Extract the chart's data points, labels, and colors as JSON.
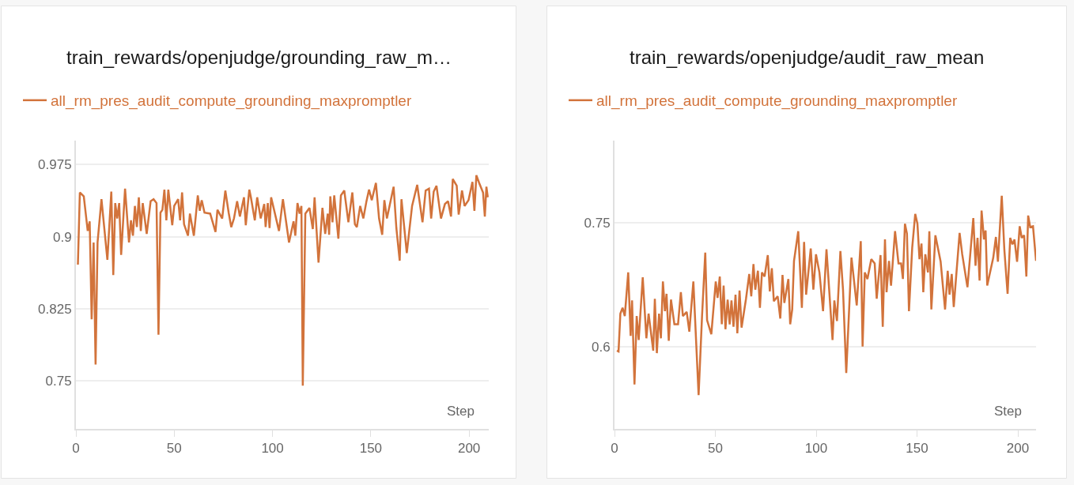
{
  "chart_data": [
    {
      "type": "line",
      "title": "train_rewards/openjudge/grounding_raw_m…",
      "xlabel": "Step",
      "grid": "y",
      "legend": "top left",
      "xlim": [
        0,
        210
      ],
      "ylim": [
        0.7,
        1.0
      ],
      "xticks": [
        0,
        50,
        100,
        150,
        200
      ],
      "yticks": [
        0.975,
        0.9,
        0.825,
        0.75
      ],
      "x": [
        1,
        2,
        4,
        6,
        7,
        8,
        9,
        10,
        11,
        13,
        16,
        18,
        19,
        20,
        21,
        22,
        23,
        25,
        27,
        28,
        29,
        30,
        31,
        32,
        33,
        34,
        36,
        38,
        39.5,
        41,
        42,
        43,
        44,
        45,
        46,
        47,
        49,
        50,
        52,
        53,
        54,
        55,
        57,
        58,
        60,
        62,
        63,
        64,
        65.4,
        68.3,
        71,
        72,
        74.4,
        76,
        77.7,
        79,
        80.4,
        82,
        83.4,
        85.5,
        86.4,
        88.2,
        89,
        91,
        92.2,
        94,
        95.8,
        96.5,
        97.6,
        98.5,
        99.3,
        103.3,
        105.3,
        108.4,
        110.7,
        111.6,
        112.7,
        113.8,
        114.7,
        115.4,
        116.7,
        118.8,
        120.5,
        121.4,
        123.4,
        125.4,
        126.8,
        128.1,
        128.8,
        129.4,
        130.5,
        131.4,
        133.5,
        134.8,
        136.5,
        138.6,
        140.6,
        141.9,
        142.9,
        144.6,
        146.2,
        147.8,
        149.1,
        150.5,
        152.6,
        154.2,
        155.8,
        156.9,
        158.2,
        161.6,
        163,
        164.7,
        165.6,
        168.3,
        171,
        173.6,
        176.3,
        177.9,
        179.6,
        180.7,
        182,
        183.4,
        185.7,
        187.7,
        189.3,
        190.8,
        191.7,
        193.7,
        194.7,
        196.4,
        197.7,
        199.7,
        201.7,
        202.7,
        203.7,
        205.1,
        207.1,
        208,
        208.8,
        209.5
      ],
      "series": [
        {
          "name": "all_rm_pres_audit_compute_grounding_maxpromptler",
          "color": "#d2733b",
          "values": [
            0.871,
            0.946,
            0.942,
            0.906,
            0.916,
            0.814,
            0.894,
            0.767,
            0.894,
            0.939,
            0.876,
            0.947,
            0.86,
            0.935,
            0.919,
            0.935,
            0.881,
            0.95,
            0.894,
            0.917,
            0.901,
            0.932,
            0.91,
            0.941,
            0.906,
            0.935,
            0.903,
            0.937,
            0.939,
            0.935,
            0.798,
            0.925,
            0.928,
            0.949,
            0.917,
            0.949,
            0.912,
            0.932,
            0.939,
            0.917,
            0.946,
            0.913,
            0.901,
            0.924,
            0.901,
            0.943,
            0.927,
            0.938,
            0.925,
            0.924,
            0.905,
            0.928,
            0.919,
            0.948,
            0.925,
            0.91,
            0.919,
            0.937,
            0.921,
            0.941,
            0.912,
            0.949,
            0.941,
            0.917,
            0.941,
            0.919,
            0.934,
            0.91,
            0.935,
            0.909,
            0.941,
            0.906,
            0.939,
            0.894,
            0.916,
            0.901,
            0.935,
            0.924,
            0.932,
            0.745,
            0.924,
            0.93,
            0.908,
            0.941,
            0.873,
            0.93,
            0.903,
            0.924,
            0.902,
            0.942,
            0.915,
            0.943,
            0.898,
            0.943,
            0.948,
            0.915,
            0.946,
            0.913,
            0.91,
            0.932,
            0.919,
            0.937,
            0.949,
            0.938,
            0.956,
            0.919,
            0.902,
            0.938,
            0.919,
            0.952,
            0.909,
            0.875,
            0.939,
            0.883,
            0.932,
            0.954,
            0.915,
            0.948,
            0.95,
            0.919,
            0.947,
            0.953,
            0.919,
            0.934,
            0.937,
            0.921,
            0.96,
            0.953,
            0.923,
            0.948,
            0.932,
            0.938,
            0.957,
            0.927,
            0.964,
            0.956,
            0.946,
            0.921,
            0.952,
            0.941
          ]
        }
      ]
    },
    {
      "type": "line",
      "title": "train_rewards/openjudge/audit_raw_mean",
      "xlabel": "Step",
      "grid": "y",
      "legend": "top left",
      "xlim": [
        0,
        209
      ],
      "ylim": [
        0.5,
        0.85
      ],
      "xticks": [
        0,
        50,
        100,
        150,
        200
      ],
      "yticks": [
        0.75,
        0.6
      ],
      "x": [
        1.2,
        2,
        2.9,
        4,
        5.1,
        6.8,
        8,
        8.7,
        9.9,
        11,
        12,
        14,
        15.8,
        16.9,
        19.2,
        20,
        21,
        22.1,
        23,
        24,
        25,
        25.8,
        26.9,
        28,
        29.7,
        31.5,
        32.9,
        33.9,
        35.8,
        37.1,
        39.1,
        41.7,
        43.4,
        45,
        45.9,
        48,
        50.2,
        51.1,
        52.2,
        53.2,
        54.1,
        55,
        56.1,
        57.1,
        58,
        59,
        60,
        60.9,
        62,
        63,
        65.2,
        66.8,
        67.8,
        68.9,
        69.8,
        71.1,
        72.1,
        73.1,
        74.4,
        76,
        77,
        78,
        79,
        80.9,
        82.2,
        83.3,
        84.2,
        86.2,
        87.1,
        88.1,
        89,
        91.1,
        92.9,
        94,
        95,
        97.3,
        98.6,
        99.9,
        101.6,
        103.4,
        105.1,
        108.1,
        109,
        110.3,
        112,
        113.3,
        114.9,
        117.5,
        120.1,
        122.1,
        123,
        124.1,
        125.4,
        127.3,
        129,
        130,
        131.9,
        133,
        134.1,
        134.9,
        136.1,
        137.1,
        139.1,
        140.8,
        142.1,
        143,
        144,
        145,
        146,
        147.6,
        149.1,
        150.2,
        151.2,
        152.2,
        153.1,
        154.1,
        155.4,
        156.1,
        157.1,
        159.1,
        161.7,
        163.9,
        165.2,
        166.1,
        167.2,
        168.2,
        171.1,
        172.4,
        175,
        177.9,
        179,
        180,
        181,
        182,
        183.2,
        184,
        184.8,
        187.8,
        189.1,
        190.1,
        192,
        193.3,
        194.9,
        196.2,
        197.3,
        198.3,
        199.6,
        200.9,
        201.9,
        203.1,
        204.2,
        205.1,
        206.1,
        207.5,
        209
      ],
      "series": [
        {
          "name": "all_rm_pres_audit_compute_grounding_maxpromptler",
          "color": "#d2733b",
          "values": [
            0.595,
            0.594,
            0.64,
            0.647,
            0.637,
            0.69,
            0.613,
            0.656,
            0.554,
            0.637,
            0.608,
            0.684,
            0.61,
            0.64,
            0.595,
            0.658,
            0.592,
            0.64,
            0.61,
            0.679,
            0.643,
            0.664,
            0.607,
            0.657,
            0.627,
            0.627,
            0.666,
            0.637,
            0.642,
            0.618,
            0.679,
            0.541,
            0.637,
            0.714,
            0.632,
            0.615,
            0.679,
            0.659,
            0.685,
            0.627,
            0.674,
            0.621,
            0.657,
            0.627,
            0.656,
            0.624,
            0.663,
            0.616,
            0.668,
            0.623,
            0.658,
            0.688,
            0.661,
            0.7,
            0.669,
            0.692,
            0.647,
            0.69,
            0.685,
            0.711,
            0.667,
            0.695,
            0.655,
            0.661,
            0.634,
            0.687,
            0.653,
            0.682,
            0.627,
            0.645,
            0.704,
            0.74,
            0.647,
            0.727,
            0.663,
            0.719,
            0.669,
            0.712,
            0.69,
            0.643,
            0.718,
            0.608,
            0.656,
            0.631,
            0.716,
            0.669,
            0.568,
            0.708,
            0.65,
            0.728,
            0.6,
            0.69,
            0.682,
            0.706,
            0.701,
            0.658,
            0.711,
            0.624,
            0.73,
            0.666,
            0.704,
            0.674,
            0.74,
            0.701,
            0.701,
            0.682,
            0.749,
            0.737,
            0.643,
            0.72,
            0.761,
            0.749,
            0.706,
            0.725,
            0.666,
            0.712,
            0.69,
            0.74,
            0.645,
            0.735,
            0.703,
            0.645,
            0.692,
            0.663,
            0.688,
            0.648,
            0.738,
            0.712,
            0.672,
            0.756,
            0.698,
            0.732,
            0.68,
            0.765,
            0.73,
            0.741,
            0.674,
            0.708,
            0.733,
            0.703,
            0.783,
            0.717,
            0.664,
            0.732,
            0.724,
            0.73,
            0.703,
            0.746,
            0.732,
            0.735,
            0.685,
            0.759,
            0.745,
            0.746,
            0.704
          ]
        }
      ]
    }
  ]
}
